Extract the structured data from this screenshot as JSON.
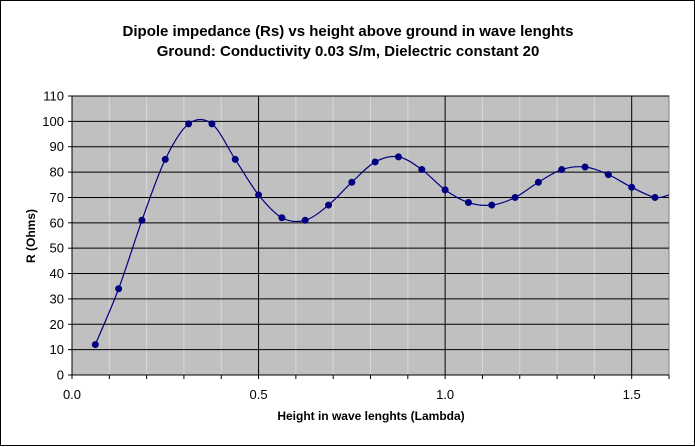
{
  "chart_data": {
    "type": "scatter",
    "title": "Dipole impedance (Rs) vs height above ground in wave lenghts",
    "subtitle": "Ground: Conductivity 0.03 S/m, Dielectric constant 20",
    "xlabel": "Height in wave lenghts (Lambda)",
    "ylabel": "R (Ohms)",
    "xlim": [
      0.0,
      1.6
    ],
    "ylim": [
      0,
      110
    ],
    "x_ticks": [
      0.0,
      0.5,
      1.0,
      1.5
    ],
    "x_tick_labels": [
      "0.0",
      "0.5",
      "1.0",
      "1.5"
    ],
    "y_ticks": [
      0,
      10,
      20,
      30,
      40,
      50,
      60,
      70,
      80,
      90,
      100,
      110
    ],
    "y_tick_labels": [
      "0",
      "10",
      "20",
      "30",
      "40",
      "50",
      "60",
      "70",
      "80",
      "90",
      "100",
      "110"
    ],
    "grid": true,
    "line_style": "smoothed line with markers",
    "colors": {
      "plot_background": "#c0c0c0",
      "series": "#000080",
      "grid": "#000000"
    },
    "series": [
      {
        "x": [
          0.0625,
          0.125,
          0.1875,
          0.25,
          0.3125,
          0.375,
          0.4375,
          0.5,
          0.5625,
          0.625,
          0.6875,
          0.75,
          0.8125,
          0.875,
          0.9375,
          1.0,
          1.0625,
          1.125,
          1.1875,
          1.25,
          1.3125,
          1.375,
          1.4375,
          1.5,
          1.5625
        ],
        "y": [
          12,
          34,
          61,
          85,
          99,
          99,
          85,
          71,
          62,
          61,
          67,
          76,
          84,
          86,
          81,
          73,
          68,
          67,
          70,
          76,
          81,
          82,
          79,
          74,
          70
        ]
      }
    ]
  }
}
